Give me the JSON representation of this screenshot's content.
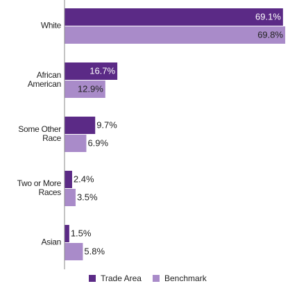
{
  "chart_data": {
    "type": "bar",
    "orientation": "horizontal",
    "categories": [
      "White",
      "African American",
      "Some Other Race",
      "Two or More Races",
      "Asian"
    ],
    "series": [
      {
        "name": "Trade Area",
        "color": "#5b2a86",
        "values": [
          69.1,
          16.7,
          9.7,
          2.4,
          1.5
        ],
        "value_labels": [
          "69.1%",
          "16.7%",
          "9.7%",
          "2.4%",
          "1.5%"
        ]
      },
      {
        "name": "Benchmark",
        "color": "#a98bc9",
        "values": [
          69.8,
          12.9,
          6.9,
          3.5,
          5.8
        ],
        "value_labels": [
          "69.8%",
          "12.9%",
          "6.9%",
          "3.5%",
          "5.8%"
        ]
      }
    ],
    "xlim": [
      0,
      70
    ],
    "legend": "bottom"
  }
}
